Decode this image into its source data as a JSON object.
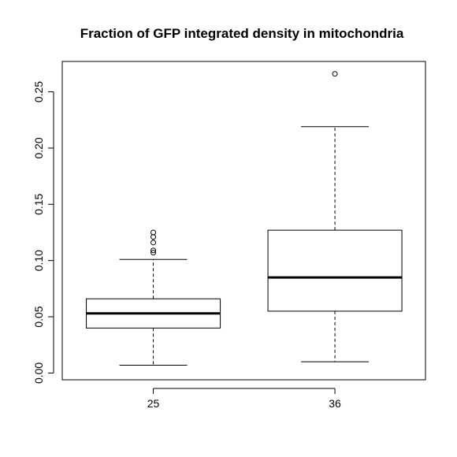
{
  "chart_data": {
    "type": "box",
    "title": "Fraction of GFP integrated density in mitochondria",
    "xlabel": "",
    "ylabel": "",
    "categories": [
      "25",
      "36"
    ],
    "y_ticks": [
      "0.00",
      "0.05",
      "0.10",
      "0.15",
      "0.20",
      "0.25"
    ],
    "ylim": [
      -0.006,
      0.277
    ],
    "grid": false,
    "boxes": [
      {
        "category": "25",
        "whisker_low": 0.007,
        "q1": 0.04,
        "median": 0.053,
        "q3": 0.066,
        "whisker_high": 0.101,
        "outliers": [
          0.107,
          0.109,
          0.116,
          0.121,
          0.125
        ]
      },
      {
        "category": "36",
        "whisker_low": 0.01,
        "q1": 0.055,
        "median": 0.085,
        "q3": 0.127,
        "whisker_high": 0.219,
        "outliers": [
          0.266
        ]
      }
    ],
    "colors": {
      "stroke": "#000000",
      "background": "#ffffff"
    }
  }
}
